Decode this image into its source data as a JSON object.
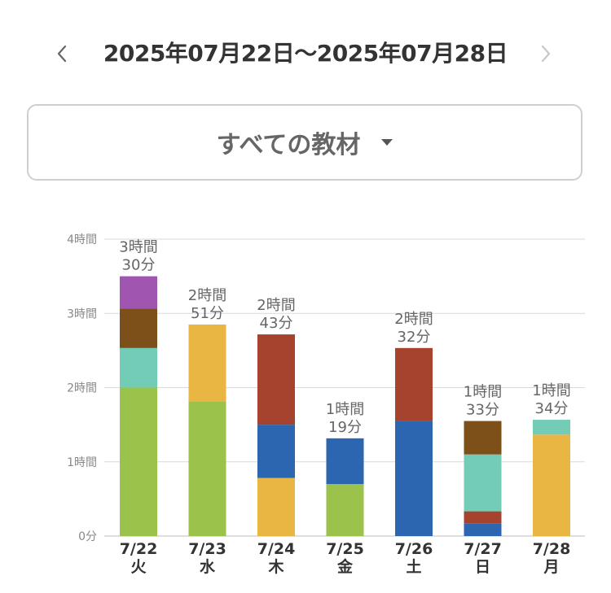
{
  "header": {
    "date_range": "2025年07月22日〜2025年07月28日",
    "prev_icon": "chevron-left-icon",
    "next_icon": "chevron-right-icon"
  },
  "filter": {
    "label": "すべての教材",
    "dropdown_icon": "caret-down-icon"
  },
  "colors": {
    "green": "#9bc34b",
    "teal": "#73ccb5",
    "brown": "#7d4f19",
    "purple": "#a055b0",
    "yellow": "#e9b543",
    "red": "#a5432f",
    "blue": "#2d66b0",
    "grid": "#d9d9d9",
    "axis_text": "#888888",
    "label_text": "#666666"
  },
  "chart_data": {
    "type": "bar",
    "stacked": true,
    "unit": "minutes",
    "ylim": [
      0,
      240
    ],
    "y_ticks": [
      {
        "value": 0,
        "label": "0分"
      },
      {
        "value": 60,
        "label": "1時間"
      },
      {
        "value": 120,
        "label": "2時間"
      },
      {
        "value": 180,
        "label": "3時間"
      },
      {
        "value": 240,
        "label": "4時間"
      }
    ],
    "grid": true,
    "bars": [
      {
        "date": "7/22",
        "weekday": "火",
        "total_hours": "3時間",
        "total_minutes": "30分",
        "segments": [
          {
            "color": "green",
            "value": 120
          },
          {
            "color": "teal",
            "value": 32
          },
          {
            "color": "brown",
            "value": 32
          },
          {
            "color": "purple",
            "value": 26
          }
        ]
      },
      {
        "date": "7/23",
        "weekday": "水",
        "total_hours": "2時間",
        "total_minutes": "51分",
        "segments": [
          {
            "color": "green",
            "value": 109
          },
          {
            "color": "yellow",
            "value": 62
          }
        ]
      },
      {
        "date": "7/24",
        "weekday": "木",
        "total_hours": "2時間",
        "total_minutes": "43分",
        "segments": [
          {
            "color": "yellow",
            "value": 47
          },
          {
            "color": "blue",
            "value": 43
          },
          {
            "color": "red",
            "value": 73
          }
        ]
      },
      {
        "date": "7/25",
        "weekday": "金",
        "total_hours": "1時間",
        "total_minutes": "19分",
        "segments": [
          {
            "color": "green",
            "value": 42
          },
          {
            "color": "blue",
            "value": 37
          }
        ]
      },
      {
        "date": "7/26",
        "weekday": "土",
        "total_hours": "2時間",
        "total_minutes": "32分",
        "segments": [
          {
            "color": "blue",
            "value": 93
          },
          {
            "color": "red",
            "value": 59
          }
        ]
      },
      {
        "date": "7/27",
        "weekday": "日",
        "total_hours": "1時間",
        "total_minutes": "33分",
        "segments": [
          {
            "color": "blue",
            "value": 10
          },
          {
            "color": "red",
            "value": 10
          },
          {
            "color": "teal",
            "value": 46
          },
          {
            "color": "brown",
            "value": 27
          }
        ]
      },
      {
        "date": "7/28",
        "weekday": "月",
        "total_hours": "1時間",
        "total_minutes": "34分",
        "segments": [
          {
            "color": "yellow",
            "value": 82
          },
          {
            "color": "teal",
            "value": 12
          }
        ]
      }
    ]
  }
}
